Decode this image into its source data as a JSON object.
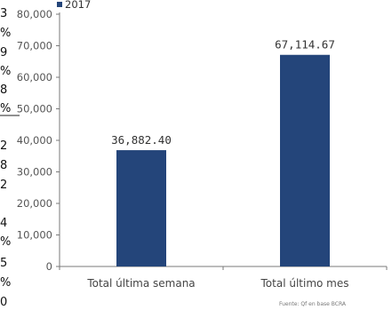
{
  "chart_data": {
    "type": "bar",
    "categories": [
      "Total última semana",
      "Total último mes"
    ],
    "series": [
      {
        "name": "2017",
        "values": [
          36882.4,
          67114.67
        ]
      }
    ],
    "data_labels": [
      "36,882.40",
      "67,114.67"
    ],
    "y_ticks": [
      "0",
      "10,000",
      "20,000",
      "30,000",
      "40,000",
      "50,000",
      "60,000",
      "70,000",
      "80,000"
    ],
    "ylim": [
      0,
      80000
    ],
    "grid": false,
    "legend": "top-left",
    "bar_color": "#24457a",
    "source": "Fuente: Qf en base BCRA"
  },
  "left_fragments": [
    "3",
    "%",
    "9",
    "%",
    "8",
    "%",
    "2",
    "8",
    "2",
    "4",
    "%",
    "5",
    "%",
    "0"
  ]
}
